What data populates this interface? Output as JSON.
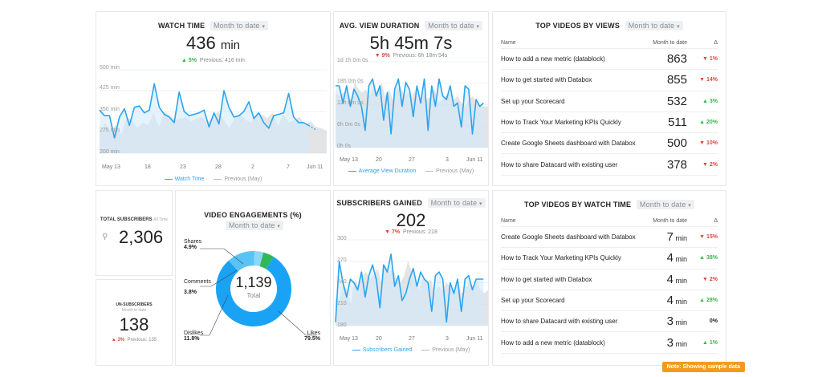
{
  "watch_time": {
    "title": "WATCH TIME",
    "period": "Month to date",
    "value": "436",
    "unit": "min",
    "delta": "5%",
    "previous": "Previous: 416 min",
    "y_ticks": [
      "500 min",
      "425 min",
      "350 min",
      "275 min",
      "200 min"
    ],
    "x_ticks": [
      "May 13",
      "18",
      "23",
      "28",
      "2",
      "7",
      "Jun 11"
    ],
    "legend_current": "Watch Time",
    "legend_previous": "Previous (May)"
  },
  "avg_view": {
    "title": "AVG. VIEW DURATION",
    "period": "Month to date",
    "value": "5h 45m 7s",
    "delta": "9%",
    "previous": "Previous: 6h 18m 54s",
    "y_ticks": [
      "1d 1h 0m 0s",
      "18h 0m 0s",
      "12h 0m 0s",
      "6h 0m 0s",
      "0h 0s"
    ],
    "x_ticks": [
      "May 13",
      "20",
      "27",
      "3",
      "Jun 11"
    ],
    "legend_current": "Average View Duration",
    "legend_previous": "Previous (May)"
  },
  "top_views": {
    "title": "TOP VIDEOS BY VIEWS",
    "period": "Month to date",
    "col_name": "Name",
    "col_value": "Month to date",
    "col_delta": "Δ",
    "rows": [
      {
        "name": "How to add a new metric (datablock)",
        "value": "863",
        "unit": "",
        "delta": "1%",
        "dir": "down"
      },
      {
        "name": "How to get started with Databox",
        "value": "855",
        "unit": "",
        "delta": "14%",
        "dir": "down"
      },
      {
        "name": "Set up your Scorecard",
        "value": "532",
        "unit": "",
        "delta": "3%",
        "dir": "up"
      },
      {
        "name": "How to Track Your Marketing KPIs Quickly",
        "value": "511",
        "unit": "",
        "delta": "20%",
        "dir": "up"
      },
      {
        "name": "Create Google Sheets dashboard with Databox",
        "value": "500",
        "unit": "",
        "delta": "10%",
        "dir": "down"
      },
      {
        "name": "How to share Datacard with existing user",
        "value": "378",
        "unit": "",
        "delta": "2%",
        "dir": "down"
      }
    ]
  },
  "total_subs": {
    "title": "TOTAL SUBSCRIBERS",
    "period": "All Time",
    "value": "2,306"
  },
  "unsubs": {
    "title": "UN-SUBSCRIBERS",
    "period": "Month to date",
    "value": "138",
    "delta": "3%",
    "previous": "Previous: 135"
  },
  "engagements": {
    "title": "VIDEO ENGAGEMENTS (%)",
    "period": "Month to date",
    "total_value": "1,139",
    "total_label": "Total",
    "shares_label": "Shares",
    "shares_pct": "4.9%",
    "comments_label": "Comments",
    "comments_pct": "3.8%",
    "dislikes_label": "Dislikes",
    "dislikes_pct": "11.8%",
    "likes_label": "Likes",
    "likes_pct": "79.5%"
  },
  "subs_gained": {
    "title": "SUBSCRIBERS GAINED",
    "period": "Month to date",
    "value": "202",
    "delta": "7%",
    "previous": "Previous: 218",
    "y_ticks": [
      "300",
      "270",
      "240",
      "210",
      "180"
    ],
    "x_ticks": [
      "May 13",
      "20",
      "27",
      "3",
      "Jun 11"
    ],
    "legend_current": "Subscribers Gained",
    "legend_previous": "Previous (May)"
  },
  "top_watch": {
    "title": "TOP VIDEOS BY WATCH TIME",
    "period": "Month to date",
    "col_name": "Name",
    "col_value": "Month to date",
    "col_delta": "Δ",
    "rows": [
      {
        "name": "Create Google Sheets dashboard with Databox",
        "value": "7",
        "unit": "min",
        "delta": "15%",
        "dir": "down"
      },
      {
        "name": "How to Track Your Marketing KPIs Quickly",
        "value": "4",
        "unit": "min",
        "delta": "38%",
        "dir": "up"
      },
      {
        "name": "How to get started with Databox",
        "value": "4",
        "unit": "min",
        "delta": "2%",
        "dir": "down"
      },
      {
        "name": "Set up your Scorecard",
        "value": "4",
        "unit": "min",
        "delta": "28%",
        "dir": "up"
      },
      {
        "name": "How to share Datacard with existing user",
        "value": "3",
        "unit": "min",
        "delta": "0%",
        "dir": "none"
      },
      {
        "name": "How to add a new metric (datablock)",
        "value": "3",
        "unit": "min",
        "delta": "1%",
        "dir": "up"
      }
    ]
  },
  "sample_note": "Note: Showing sample data",
  "chart_data": [
    {
      "type": "line",
      "title": "WATCH TIME",
      "series": [
        {
          "name": "Watch Time",
          "values": [
            355,
            335,
            335,
            255,
            330,
            360,
            300,
            365,
            370,
            345,
            355,
            450,
            365,
            340,
            330,
            310,
            420,
            350,
            335,
            340,
            345,
            355,
            295,
            345,
            305,
            425,
            365,
            330,
            335,
            350,
            385,
            325,
            345,
            310,
            290,
            335,
            340,
            345,
            415,
            330,
            310,
            310,
            300
          ]
        },
        {
          "name": "Previous (May)",
          "values": [
            270,
            310,
            280,
            300,
            265,
            330,
            320,
            290,
            310,
            300,
            345,
            295,
            350,
            335,
            320,
            325,
            330,
            315,
            325,
            330,
            310,
            335,
            350,
            320,
            290,
            330,
            340,
            320,
            310,
            335,
            340,
            325,
            345,
            300,
            340,
            310,
            320,
            330,
            300,
            315,
            295,
            290,
            280
          ]
        }
      ],
      "ylim": [
        200,
        500
      ]
    },
    {
      "type": "line",
      "title": "AVG. VIEW DURATION",
      "series": [
        {
          "name": "Average View Duration",
          "values": [
            18,
            18,
            13,
            18,
            12,
            17,
            15,
            12,
            5,
            18,
            20,
            15,
            18,
            8,
            16,
            4,
            17,
            20,
            12,
            19,
            17,
            9,
            18,
            13,
            20,
            5,
            18,
            12,
            20,
            15,
            14,
            18,
            12,
            13,
            6,
            18,
            17,
            4,
            14,
            12,
            13
          ]
        },
        {
          "name": "Previous (May)",
          "values": [
            16,
            15,
            16,
            17,
            14,
            19,
            17,
            16,
            17,
            15,
            18,
            16,
            19,
            15,
            17,
            14,
            17,
            18,
            15,
            16,
            15,
            17,
            13,
            16,
            14,
            15,
            17,
            13,
            14,
            15,
            16,
            14,
            15,
            13,
            12,
            14,
            15,
            13,
            12,
            12,
            12
          ]
        }
      ],
      "ylim": [
        0,
        25
      ]
    },
    {
      "type": "pie",
      "title": "VIDEO ENGAGEMENTS (%)",
      "categories": [
        "Likes",
        "Dislikes",
        "Comments",
        "Shares"
      ],
      "values": [
        79.5,
        11.8,
        3.8,
        4.9
      ],
      "colors": [
        "#1aa3f5",
        "#59c3f5",
        "#8ed6f7",
        "#2fb85a"
      ]
    },
    {
      "type": "line",
      "title": "SUBSCRIBERS GAINED",
      "series": [
        {
          "name": "Subscribers Gained",
          "values": [
            185,
            270,
            240,
            220,
            245,
            240,
            230,
            255,
            220,
            250,
            265,
            245,
            205,
            265,
            255,
            280,
            235,
            250,
            215,
            225,
            245,
            260,
            235,
            255,
            245,
            240,
            200,
            250,
            255,
            245,
            185,
            240,
            225,
            245,
            200,
            245,
            250,
            230,
            245,
            245,
            245
          ]
        },
        {
          "name": "Previous (May)",
          "values": [
            220,
            215,
            240,
            230,
            210,
            245,
            235,
            250,
            255,
            245,
            250,
            260,
            240,
            265,
            255,
            260,
            245,
            240,
            250,
            270,
            255,
            240,
            230,
            250,
            240,
            245,
            225,
            235,
            230,
            240,
            235,
            230,
            245,
            225,
            230,
            240,
            235,
            245,
            230,
            225,
            230
          ]
        }
      ],
      "ylim": [
        180,
        300
      ]
    }
  ]
}
